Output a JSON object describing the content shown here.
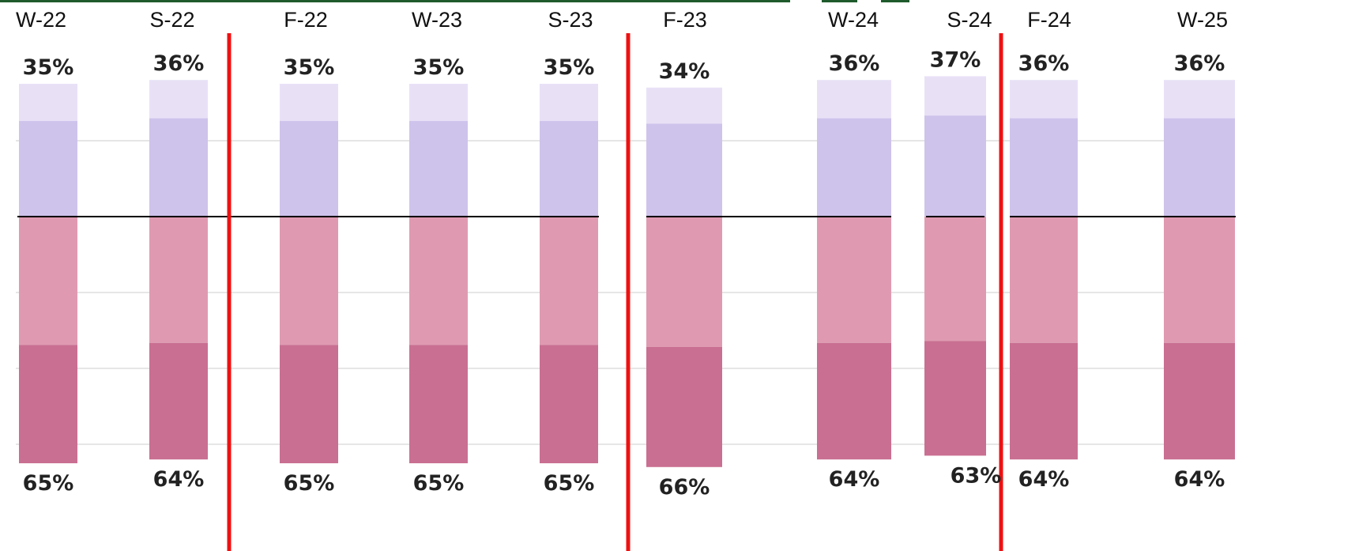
{
  "chart_data": {
    "type": "bar",
    "categories": [
      "W-22",
      "S-22",
      "F-22",
      "W-23",
      "S-23",
      "F-23",
      "W-24",
      "S-24",
      "F-24",
      "W-25"
    ],
    "series": [
      {
        "values": [
          35,
          36,
          35,
          35,
          35,
          34,
          36,
          37,
          36,
          36
        ]
      },
      {
        "values": [
          65,
          64,
          65,
          65,
          65,
          66,
          64,
          63,
          64,
          64
        ]
      }
    ],
    "colors": {
      "top_light": "#e8e1f6",
      "top_dark": "#cec3eb",
      "bottom_light": "#df9ab1",
      "bottom_dark": "#c96f91",
      "divider": "#ee1111",
      "baseline": "#000000",
      "grid": "#e6e6e6",
      "top_border": "#1f5a2c"
    },
    "dividers_after": [
      "S-22",
      "S-23",
      "S-24"
    ],
    "grid": true
  }
}
